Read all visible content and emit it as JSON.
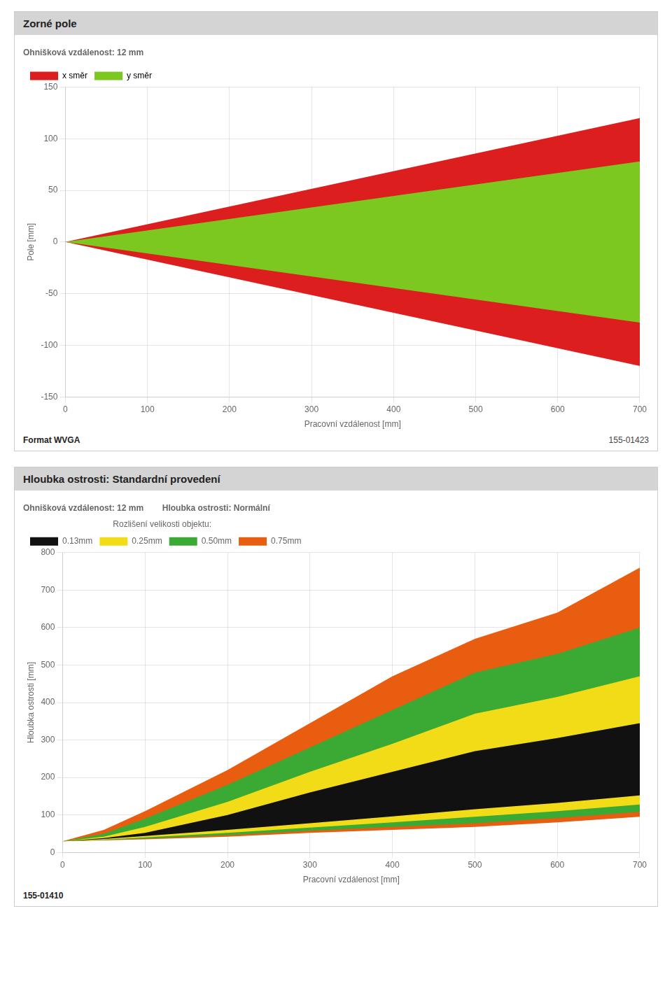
{
  "chart_data": [
    {
      "type": "area",
      "title": "Zorné pole",
      "subtitle": "Ohnišková vzdálenost: 12 mm",
      "x_label": "Pracovní vzdálenost [mm]",
      "y_label": "Pole [mm]",
      "annotations": [
        "Format WVGA",
        "155-01423"
      ],
      "x": [
        0,
        700
      ],
      "series": [
        {
          "name": "x směr",
          "color": "#dc1e1e",
          "upper": [
            0,
            120
          ],
          "lower": [
            0,
            -120
          ]
        },
        {
          "name": "y směr",
          "color": "#7dc820",
          "upper": [
            0,
            78
          ],
          "lower": [
            0,
            -78
          ]
        }
      ],
      "xlim": [
        0,
        700
      ],
      "ylim": [
        -150,
        150
      ],
      "xticks": [
        0,
        100,
        200,
        300,
        400,
        500,
        600,
        700
      ],
      "yticks": [
        -150,
        -100,
        -50,
        0,
        50,
        100,
        150
      ],
      "grid": true,
      "legend": "upper left"
    },
    {
      "type": "area",
      "title": "Hloubka ostrosti: Standardní provedení",
      "subtitle": "Ohnišková vzdálenost: 12 mm        Hloubka ostrosti: Normální",
      "x_label": "Pracovní vzdálenost [mm]",
      "y_label": "Hloubka ostrosti [mm]",
      "annotations": [
        "155-01410"
      ],
      "legend_title": "Rozlišení velikosti objektu:",
      "x": [
        0,
        50,
        100,
        200,
        300,
        400,
        500,
        600,
        700
      ],
      "series": [
        {
          "name": "0.13mm",
          "color": "#111111",
          "upper": [
            30,
            38,
            52,
            100,
            160,
            215,
            270,
            305,
            345
          ],
          "lower": [
            30,
            36,
            44,
            60,
            78,
            96,
            115,
            132,
            152
          ]
        },
        {
          "name": "0.25mm",
          "color": "#f2dc18",
          "upper": [
            30,
            42,
            68,
            135,
            215,
            290,
            370,
            415,
            470
          ],
          "lower": [
            30,
            34,
            40,
            52,
            66,
            80,
            95,
            110,
            128
          ]
        },
        {
          "name": "0.50mm",
          "color": "#3aaa35",
          "upper": [
            30,
            50,
            90,
            180,
            280,
            380,
            480,
            530,
            600
          ],
          "lower": [
            30,
            33,
            37,
            46,
            58,
            68,
            78,
            92,
            108
          ]
        },
        {
          "name": "0.75mm",
          "color": "#e85d10",
          "upper": [
            30,
            60,
            110,
            220,
            345,
            470,
            570,
            640,
            760
          ],
          "lower": [
            30,
            32,
            35,
            42,
            52,
            60,
            68,
            80,
            95
          ]
        }
      ],
      "xlim": [
        0,
        700
      ],
      "ylim": [
        0,
        800
      ],
      "xticks": [
        0,
        100,
        200,
        300,
        400,
        500,
        600,
        700
      ],
      "yticks": [
        0,
        100,
        200,
        300,
        400,
        500,
        600,
        700,
        800
      ],
      "grid": true,
      "legend": "upper left"
    }
  ]
}
